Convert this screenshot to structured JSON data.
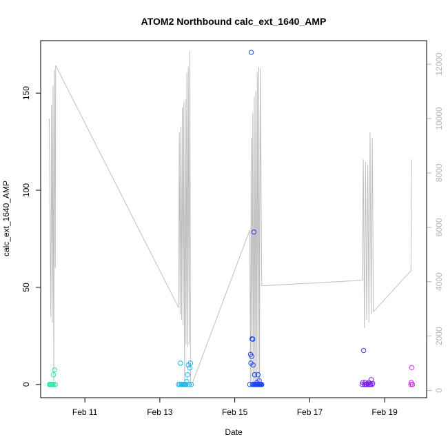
{
  "chart_data": {
    "type": "scatter",
    "title": "ATOM2 Northbound calc_ext_1640_AMP",
    "xlabel": "Date",
    "ylabel": "calc_ext_1640_AMP",
    "x_ticks": [
      "Feb 11",
      "Feb 13",
      "Feb 15",
      "Feb 17",
      "Feb 19"
    ],
    "x_tick_values": [
      11,
      13,
      15,
      17,
      19
    ],
    "xlim": [
      9.82,
      20.12
    ],
    "ylim": [
      -6.8,
      177.0
    ],
    "y_ticks": [
      0,
      50,
      100,
      150
    ],
    "y2lim": [
      -264,
      12864
    ],
    "y2_ticks": [
      0,
      2000,
      4000,
      6000,
      8000,
      10000,
      12000
    ],
    "color_map": "points colored by time, green-cyan to blue to purple to magenta",
    "grid": false,
    "line_series": {
      "name": "",
      "axis": "right",
      "color": "#bebebe",
      "x": [
        10.05,
        10.09,
        10.11,
        10.13,
        10.15,
        10.17,
        10.19,
        10.21,
        10.22,
        10.24,
        13.5,
        13.52,
        13.54,
        13.56,
        13.58,
        13.6,
        13.62,
        13.64,
        13.66,
        13.68,
        13.7,
        13.72,
        13.74,
        13.76,
        13.78,
        13.8,
        13.82,
        13.85,
        15.4,
        15.42,
        15.44,
        15.46,
        15.48,
        15.5,
        15.52,
        15.54,
        15.56,
        15.58,
        15.6,
        15.62,
        15.64,
        15.66,
        15.68,
        15.72,
        18.4,
        18.43,
        18.46,
        18.49,
        18.52,
        18.55,
        18.58,
        18.61,
        18.64,
        18.67,
        18.7,
        19.7,
        19.72
      ],
      "y": [
        10000,
        2700,
        10500,
        2500,
        11200,
        200,
        11800,
        4500,
        11950,
        11900,
        3050,
        9500,
        2800,
        9700,
        2600,
        10400,
        2400,
        10600,
        200,
        10700,
        1700,
        11700,
        1600,
        11900,
        1700,
        12500,
        200,
        200,
        5900,
        200,
        9300,
        200,
        10200,
        200,
        10800,
        200,
        11000,
        200,
        11700,
        200,
        11900,
        200,
        11850,
        3850,
        4050,
        8500,
        2300,
        8400,
        2600,
        8300,
        2500,
        9500,
        2800,
        9300,
        2900,
        4400,
        8500
      ]
    },
    "series": [
      {
        "name": "",
        "color": "#2ee3a8",
        "x": [
          10.05,
          10.08,
          10.1,
          10.12,
          10.14,
          10.16,
          10.17,
          10.19,
          10.21
        ],
        "y": [
          0,
          0,
          0,
          0,
          0,
          5,
          0,
          7.5,
          0
        ]
      },
      {
        "name": "",
        "color": "#1fb6e8",
        "x": [
          13.5,
          13.53,
          13.55,
          13.57,
          13.59,
          13.62,
          13.64,
          13.66,
          13.68,
          13.7,
          13.72,
          13.74,
          13.76,
          13.78,
          13.8,
          13.82,
          13.84
        ],
        "y": [
          0,
          0,
          11,
          0,
          0,
          0,
          0,
          0,
          0,
          0,
          1.5,
          5,
          10,
          0,
          8.5,
          11,
          0
        ]
      },
      {
        "name": "",
        "color": "#1a45f0",
        "x": [
          15.4,
          15.42,
          15.43,
          15.44,
          15.45,
          15.46,
          15.47,
          15.48,
          15.49,
          15.5,
          15.51,
          15.52,
          15.53,
          15.54,
          15.55,
          15.56,
          15.57,
          15.58,
          15.59,
          15.6,
          15.61,
          15.62,
          15.63,
          15.64,
          15.65,
          15.66,
          15.67,
          15.68,
          15.7,
          15.72
        ],
        "y": [
          0,
          15.5,
          11,
          171,
          14.5,
          23.5,
          0,
          23.3,
          10,
          0,
          78.5,
          0,
          5,
          0,
          0,
          0,
          0,
          0,
          1,
          0,
          0,
          5,
          0,
          0,
          2,
          0,
          0,
          0,
          0,
          0
        ]
      },
      {
        "name": "",
        "color": "#7a1ee8",
        "x": [
          18.4,
          18.42,
          18.44,
          18.46,
          18.48,
          18.5,
          18.52,
          18.54,
          18.56,
          18.58,
          18.6,
          18.62,
          18.64,
          18.66,
          18.68
        ],
        "y": [
          0,
          1,
          17.5,
          0,
          1,
          0,
          0,
          0.5,
          0,
          1,
          0,
          0,
          2.5,
          0,
          0.5
        ]
      },
      {
        "name": "",
        "color": "#d21ee0",
        "x": [
          19.7,
          19.71,
          19.72,
          19.74
        ],
        "y": [
          0,
          1,
          8.7,
          0
        ]
      }
    ]
  }
}
